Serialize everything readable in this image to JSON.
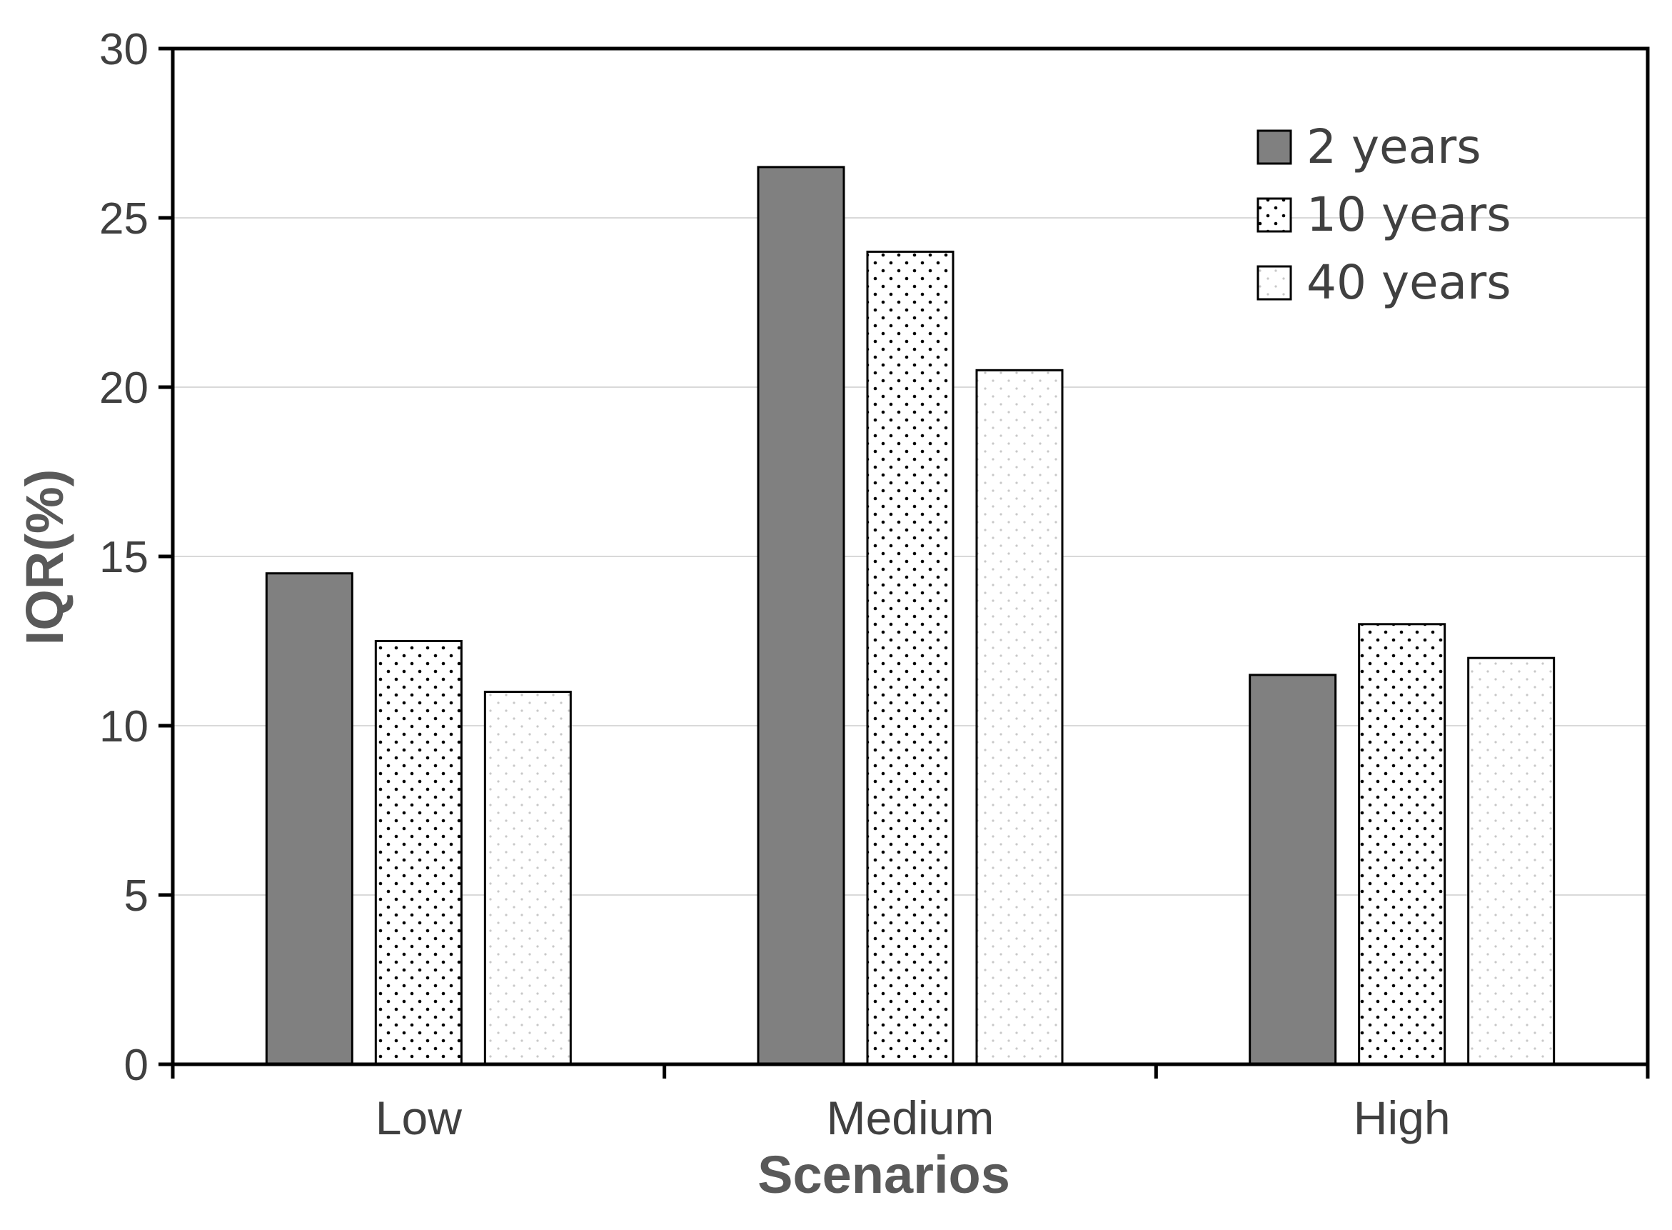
{
  "chart_data": {
    "type": "bar",
    "title": "",
    "xlabel": "Scenarios",
    "ylabel": "IQR(%)",
    "categories": [
      "Low",
      "Medium",
      "High"
    ],
    "series": [
      {
        "name": "2 years",
        "values": [
          14.5,
          26.5,
          11.5
        ],
        "fill": "#808080",
        "pattern": "solid"
      },
      {
        "name": "10 years",
        "values": [
          12.5,
          24.0,
          13.0
        ],
        "fill": "#ffffff",
        "pattern": "dots"
      },
      {
        "name": "40 years",
        "values": [
          11.0,
          20.5,
          12.0
        ],
        "fill": "#ffffff",
        "pattern": "light-dots"
      }
    ],
    "ylim": [
      0,
      30
    ],
    "yticks": [
      0,
      5,
      10,
      15,
      20,
      25,
      30
    ],
    "ytick_labels": [
      "0",
      "5",
      "10",
      "15",
      "20",
      "25",
      "30"
    ],
    "grid": true,
    "legend_position": "top-right",
    "colors": {
      "axis": "#000000",
      "grid": "#d9d9d9",
      "text": "#404040",
      "title_text": "#595959"
    }
  }
}
